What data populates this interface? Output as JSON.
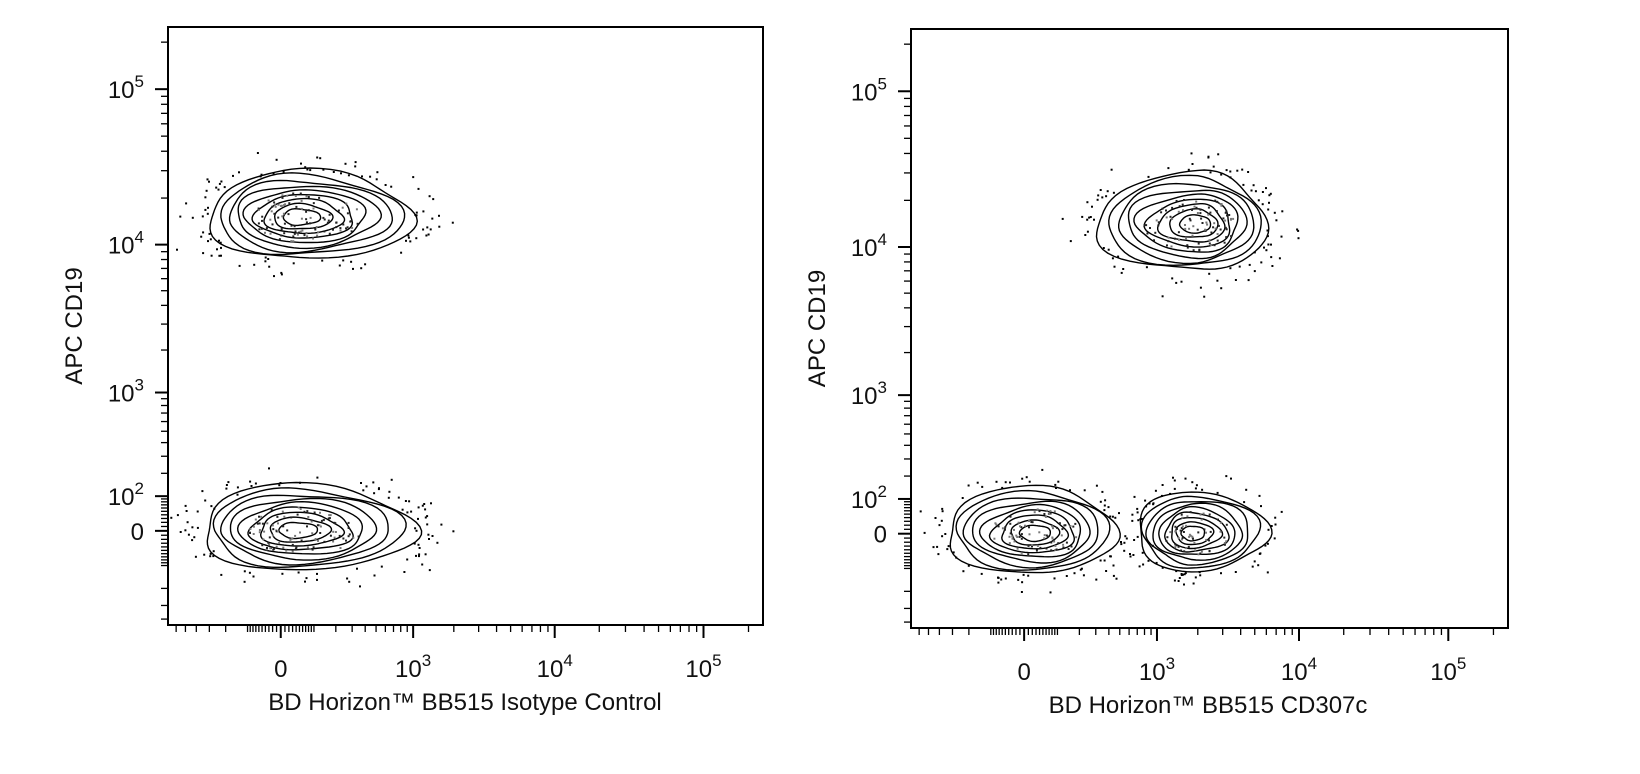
{
  "chart_data": [
    {
      "type": "scatter",
      "subtype": "flow-cytometry-contour",
      "xlabel": "BD Horizon™ BB515 Isotype Control",
      "ylabel": "APC CD19",
      "x_scale": "biexponential",
      "y_scale": "biexponential",
      "x_ticks": [
        {
          "value": 0,
          "label": "0"
        },
        {
          "value": 1000,
          "label": "10^3"
        },
        {
          "value": 10000,
          "label": "10^4"
        },
        {
          "value": 100000,
          "label": "10^5"
        }
      ],
      "y_ticks": [
        {
          "value": 0,
          "label": "0"
        },
        {
          "value": 100,
          "label": "10^2"
        },
        {
          "value": 1000,
          "label": "10^3"
        },
        {
          "value": 10000,
          "label": "10^4"
        },
        {
          "value": 100000,
          "label": "10^5"
        }
      ],
      "populations": [
        {
          "name": "",
          "x_center": 50,
          "y_center": 15000,
          "x_range": [
            -300,
            1000
          ],
          "y_range": [
            8000,
            30000
          ]
        },
        {
          "name": "",
          "x_center": 40,
          "y_center": 0,
          "x_range": [
            -350,
            1000
          ],
          "y_range": [
            -120,
            150
          ]
        }
      ]
    },
    {
      "type": "scatter",
      "subtype": "flow-cytometry-contour",
      "xlabel": "BD Horizon™ BB515 CD307c",
      "ylabel": "APC CD19",
      "x_scale": "biexponential",
      "y_scale": "biexponential",
      "x_ticks": [
        {
          "value": 0,
          "label": "0"
        },
        {
          "value": 1000,
          "label": "10^3"
        },
        {
          "value": 10000,
          "label": "10^4"
        },
        {
          "value": 100000,
          "label": "10^5"
        }
      ],
      "y_ticks": [
        {
          "value": 0,
          "label": "0"
        },
        {
          "value": 100,
          "label": "10^2"
        },
        {
          "value": 1000,
          "label": "10^3"
        },
        {
          "value": 10000,
          "label": "10^4"
        },
        {
          "value": 100000,
          "label": "10^5"
        }
      ],
      "populations": [
        {
          "name": "",
          "x_center": 2000,
          "y_center": 14000,
          "x_range": [
            300,
            6000
          ],
          "y_range": [
            7000,
            30000
          ]
        },
        {
          "name": "",
          "x_center": 30,
          "y_center": 0,
          "x_range": [
            -350,
            450
          ],
          "y_range": [
            -120,
            150
          ]
        },
        {
          "name": "",
          "x_center": 1800,
          "y_center": 0,
          "x_range": [
            700,
            6000
          ],
          "y_range": [
            -110,
            130
          ]
        }
      ]
    }
  ]
}
